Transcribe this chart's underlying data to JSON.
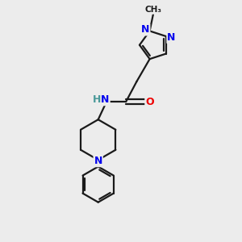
{
  "background_color": "#ececec",
  "bond_color": "#1a1a1a",
  "N_color": "#0000ee",
  "O_color": "#ee0000",
  "H_color": "#4a9999",
  "line_width": 1.6,
  "figsize": [
    3.0,
    3.0
  ],
  "dpi": 100,
  "xlim": [
    0,
    10
  ],
  "ylim": [
    0,
    10
  ]
}
